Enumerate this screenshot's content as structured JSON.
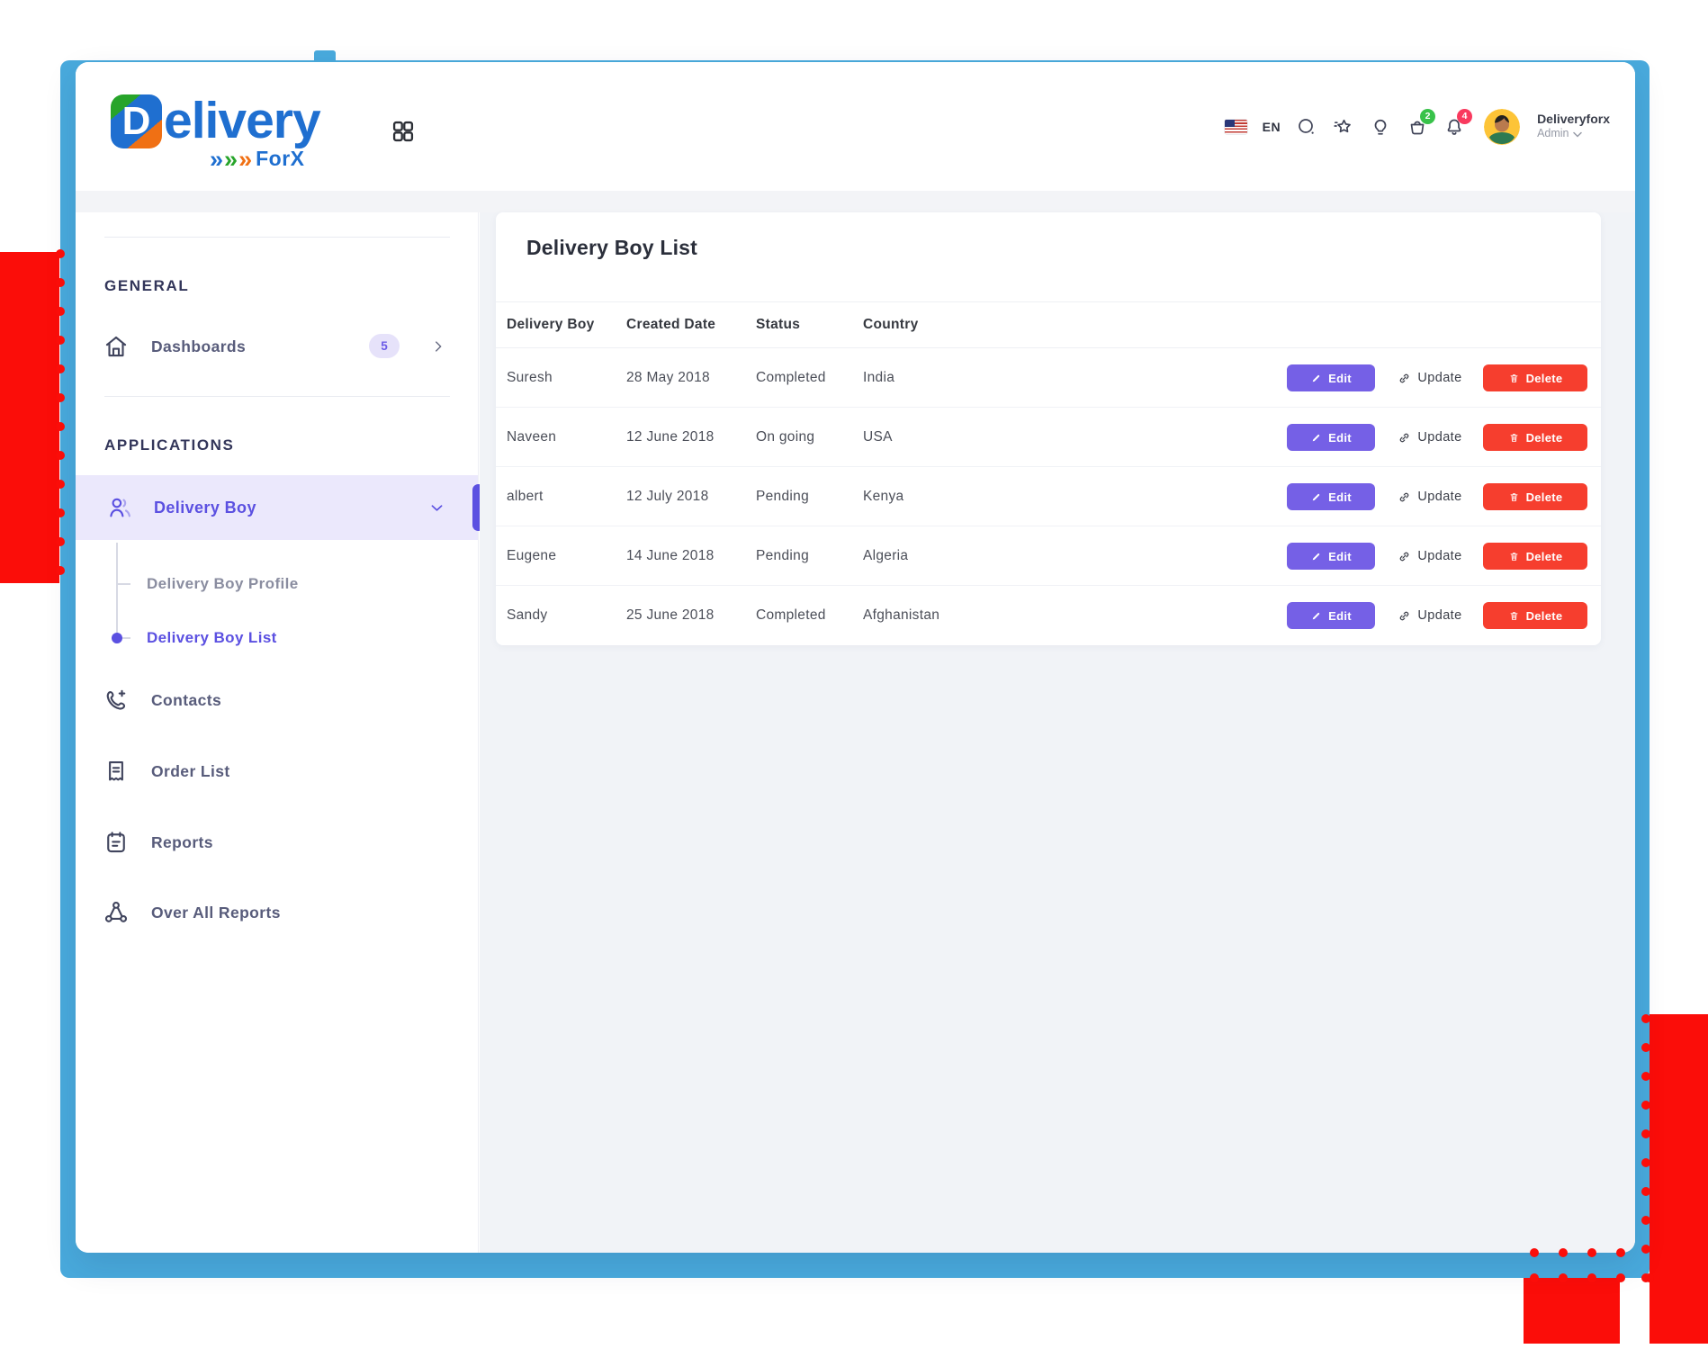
{
  "brand": {
    "initial": "D",
    "rest": "elivery",
    "arrow": "»",
    "suffix": "ForX"
  },
  "header": {
    "language": "EN",
    "cart_badge": "2",
    "notification_badge": "4",
    "user": {
      "name": "Deliveryforx",
      "role": "Admin"
    }
  },
  "sidebar": {
    "section_general": "GENERAL",
    "section_applications": "APPLICATIONS",
    "dashboards": {
      "label": "Dashboards",
      "badge": "5"
    },
    "delivery_boy": "Delivery Boy",
    "delivery_boy_profile": "Delivery Boy Profile",
    "delivery_boy_list": "Delivery Boy List",
    "contacts": "Contacts",
    "order_list": "Order List",
    "reports": "Reports",
    "overall_reports": "Over All Reports"
  },
  "main": {
    "title": "Delivery Boy List",
    "columns": {
      "delivery_boy": "Delivery Boy",
      "created_date": "Created Date",
      "status": "Status",
      "country": "Country"
    },
    "rows": [
      {
        "name": "Suresh",
        "date": "28 May 2018",
        "status": "Completed",
        "country": "India"
      },
      {
        "name": "Naveen",
        "date": "12 June 2018",
        "status": "On going",
        "country": "USA"
      },
      {
        "name": "albert",
        "date": "12 July 2018",
        "status": "Pending",
        "country": "Kenya"
      },
      {
        "name": "Eugene",
        "date": "14 June 2018",
        "status": "Pending",
        "country": "Algeria"
      },
      {
        "name": "Sandy",
        "date": "25 June 2018",
        "status": "Completed",
        "country": "Afghanistan"
      }
    ],
    "actions": {
      "edit": "Edit",
      "update": "Update",
      "delete": "Delete"
    }
  },
  "icons": {
    "header": [
      "us-flag",
      "search",
      "star",
      "lightbulb",
      "basket",
      "bell"
    ],
    "sidebar": [
      "home",
      "users",
      "phone-plus",
      "receipt",
      "clipboard",
      "share-nodes"
    ]
  },
  "colors": {
    "frame_blue": "#49aadd",
    "decor_red": "#fb0d09",
    "accent_indigo": "#5b50e1",
    "edit_purple": "#7560e6",
    "delete_red": "#f63e2e",
    "cart_badge_green": "#38c24a",
    "notification_badge_red": "#f93a5e",
    "logo_blue": "#1f6fd0",
    "logo_green": "#27a42a",
    "logo_orange": "#f07014"
  }
}
